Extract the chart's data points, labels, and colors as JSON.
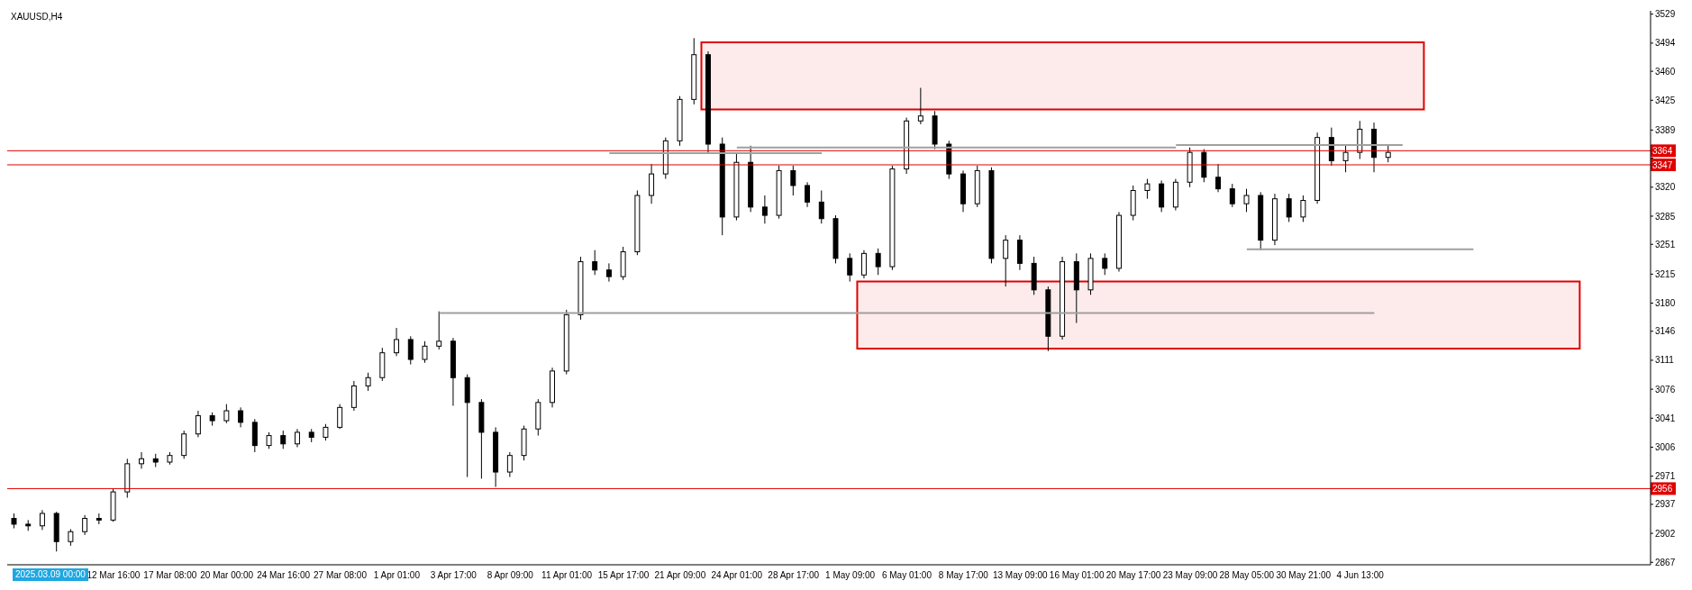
{
  "chart_data": {
    "type": "candlestick",
    "title": "XAUUSD,H4",
    "annotations": [
      "2025.03.09 00:00"
    ],
    "categories": [
      null,
      null,
      null,
      null,
      null,
      null,
      null,
      "12 Mar 16:00",
      null,
      null,
      null,
      "17 Mar 08:00",
      null,
      null,
      null,
      "20 Mar 00:00",
      null,
      null,
      null,
      "24 Mar 16:00",
      null,
      null,
      null,
      "27 Mar 08:00",
      null,
      null,
      null,
      "1 Apr 01:00",
      null,
      null,
      null,
      "3 Apr 17:00",
      null,
      null,
      null,
      "8 Apr 09:00",
      null,
      null,
      null,
      "11 Apr 01:00",
      null,
      null,
      null,
      "15 Apr 17:00",
      null,
      null,
      null,
      "21 Apr 09:00",
      null,
      null,
      null,
      "24 Apr 01:00",
      null,
      null,
      null,
      "28 Apr 17:00",
      null,
      null,
      null,
      "1 May 09:00",
      null,
      null,
      null,
      "6 May 01:00",
      null,
      null,
      null,
      "8 May 17:00",
      null,
      null,
      null,
      "13 May 09:00",
      null,
      null,
      null,
      "16 May 01:00",
      null,
      null,
      null,
      "20 May 17:00",
      null,
      null,
      null,
      "23 May 09:00",
      null,
      null,
      null,
      "28 May 05:00",
      null,
      null,
      null,
      "30 May 21:00",
      null,
      null,
      null,
      "4 Jun 13:00",
      null,
      null,
      null,
      null,
      null,
      null,
      null,
      null,
      null,
      null,
      null,
      null,
      null,
      null,
      null,
      null,
      null,
      null,
      null,
      null
    ],
    "ohlc": [
      [
        2920,
        2926,
        2908,
        2913
      ],
      [
        2913,
        2918,
        2905,
        2911
      ],
      [
        2911,
        2930,
        2906,
        2926
      ],
      [
        2926,
        2928,
        2880,
        2892
      ],
      [
        2892,
        2907,
        2887,
        2904
      ],
      [
        2904,
        2924,
        2900,
        2920
      ],
      [
        2920,
        2926,
        2913,
        2918
      ],
      [
        2918,
        2956,
        2916,
        2952
      ],
      [
        2952,
        2992,
        2945,
        2986
      ],
      [
        2986,
        3000,
        2980,
        2992
      ],
      [
        2992,
        2998,
        2982,
        2988
      ],
      [
        2988,
        3000,
        2985,
        2996
      ],
      [
        2996,
        3026,
        2992,
        3022
      ],
      [
        3022,
        3050,
        3018,
        3044
      ],
      [
        3044,
        3048,
        3032,
        3038
      ],
      [
        3038,
        3058,
        3035,
        3050
      ],
      [
        3050,
        3054,
        3030,
        3036
      ],
      [
        3036,
        3040,
        3000,
        3008
      ],
      [
        3008,
        3024,
        3004,
        3020
      ],
      [
        3020,
        3026,
        3004,
        3010
      ],
      [
        3010,
        3028,
        3006,
        3024
      ],
      [
        3024,
        3028,
        3012,
        3018
      ],
      [
        3018,
        3034,
        3014,
        3030
      ],
      [
        3030,
        3058,
        3028,
        3054
      ],
      [
        3054,
        3086,
        3050,
        3080
      ],
      [
        3080,
        3096,
        3074,
        3090
      ],
      [
        3090,
        3126,
        3086,
        3120
      ],
      [
        3120,
        3150,
        3116,
        3136
      ],
      [
        3136,
        3140,
        3106,
        3112
      ],
      [
        3112,
        3134,
        3108,
        3128
      ],
      [
        3128,
        3170,
        3124,
        3134
      ],
      [
        3134,
        3138,
        3056,
        3090
      ],
      [
        3090,
        3094,
        2970,
        3060
      ],
      [
        3060,
        3064,
        2968,
        3024
      ],
      [
        3024,
        3030,
        2958,
        2976
      ],
      [
        2976,
        3000,
        2970,
        2996
      ],
      [
        2996,
        3032,
        2990,
        3028
      ],
      [
        3028,
        3064,
        3020,
        3060
      ],
      [
        3060,
        3102,
        3054,
        3098
      ],
      [
        3098,
        3172,
        3094,
        3166
      ],
      [
        3166,
        3236,
        3160,
        3230
      ],
      [
        3230,
        3244,
        3214,
        3220
      ],
      [
        3220,
        3228,
        3206,
        3212
      ],
      [
        3212,
        3248,
        3208,
        3242
      ],
      [
        3242,
        3316,
        3238,
        3310
      ],
      [
        3310,
        3348,
        3300,
        3336
      ],
      [
        3336,
        3380,
        3330,
        3376
      ],
      [
        3376,
        3430,
        3370,
        3426
      ],
      [
        3426,
        3500,
        3420,
        3480
      ],
      [
        3480,
        3484,
        3360,
        3372
      ],
      [
        3372,
        3380,
        3262,
        3284
      ],
      [
        3284,
        3362,
        3280,
        3350
      ],
      [
        3350,
        3370,
        3290,
        3296
      ],
      [
        3296,
        3310,
        3276,
        3286
      ],
      [
        3286,
        3346,
        3282,
        3340
      ],
      [
        3340,
        3346,
        3310,
        3322
      ],
      [
        3322,
        3326,
        3296,
        3302
      ],
      [
        3302,
        3316,
        3276,
        3282
      ],
      [
        3282,
        3286,
        3228,
        3234
      ],
      [
        3234,
        3240,
        3206,
        3214
      ],
      [
        3214,
        3244,
        3210,
        3240
      ],
      [
        3240,
        3246,
        3214,
        3224
      ],
      [
        3224,
        3346,
        3220,
        3342
      ],
      [
        3342,
        3404,
        3336,
        3400
      ],
      [
        3400,
        3440,
        3396,
        3406
      ],
      [
        3406,
        3412,
        3366,
        3372
      ],
      [
        3372,
        3376,
        3330,
        3336
      ],
      [
        3336,
        3340,
        3290,
        3300
      ],
      [
        3300,
        3346,
        3296,
        3340
      ],
      [
        3340,
        3344,
        3228,
        3234
      ],
      [
        3234,
        3262,
        3200,
        3256
      ],
      [
        3256,
        3262,
        3220,
        3228
      ],
      [
        3228,
        3236,
        3190,
        3196
      ],
      [
        3196,
        3200,
        3122,
        3140
      ],
      [
        3140,
        3236,
        3136,
        3230
      ],
      [
        3230,
        3240,
        3156,
        3196
      ],
      [
        3196,
        3240,
        3190,
        3234
      ],
      [
        3234,
        3240,
        3214,
        3222
      ],
      [
        3222,
        3290,
        3218,
        3286
      ],
      [
        3286,
        3322,
        3280,
        3316
      ],
      [
        3316,
        3330,
        3306,
        3324
      ],
      [
        3324,
        3328,
        3290,
        3296
      ],
      [
        3296,
        3330,
        3292,
        3326
      ],
      [
        3326,
        3368,
        3320,
        3362
      ],
      [
        3362,
        3366,
        3326,
        3332
      ],
      [
        3332,
        3348,
        3314,
        3318
      ],
      [
        3318,
        3324,
        3296,
        3300
      ],
      [
        3300,
        3318,
        3290,
        3310
      ],
      [
        3310,
        3314,
        3244,
        3256
      ],
      [
        3256,
        3312,
        3250,
        3306
      ],
      [
        3306,
        3312,
        3278,
        3284
      ],
      [
        3284,
        3310,
        3278,
        3304
      ],
      [
        3304,
        3386,
        3300,
        3380
      ],
      [
        3380,
        3392,
        3346,
        3352
      ],
      [
        3352,
        3370,
        3338,
        3362
      ],
      [
        3362,
        3400,
        3354,
        3390
      ],
      [
        3390,
        3398,
        3338,
        3356
      ],
      [
        3356,
        3372,
        3350,
        3362
      ],
      null,
      null,
      null,
      null,
      null,
      null,
      null,
      null,
      null,
      null,
      null,
      null,
      null,
      null,
      null,
      null,
      null,
      null
    ],
    "color": "#000000",
    "ylim": [
      2864,
      3533
    ],
    "yticks": [
      3529,
      3494,
      3460,
      3425,
      3389,
      {
        "value": 3355,
        "label": null
      },
      3320,
      3285,
      3251,
      3215,
      3180,
      3146,
      3111,
      3076,
      3041,
      3006,
      2971,
      2937,
      2902,
      2867
    ],
    "ref_lines": [
      {
        "axis": "y",
        "value": 3364,
        "label": "3364",
        "color": "#e00000"
      },
      {
        "axis": "y",
        "value": 3347,
        "label": "3347",
        "color": "#e00000"
      },
      {
        "axis": "y",
        "value": 2956,
        "label": "2956",
        "color": "#e00000"
      },
      {
        "axis": "y",
        "value": 3168,
        "color": "#a0a0a0"
      },
      {
        "axis": "y",
        "value": 3361,
        "color": "#a0a0a0"
      },
      {
        "axis": "y",
        "value": 3368,
        "color": "#a0a0a0"
      },
      {
        "axis": "y",
        "value": 3371,
        "color": "#a0a0a0"
      },
      {
        "axis": "y",
        "value": 3245,
        "color": "#a0a0a0"
      }
    ],
    "bands": [
      {
        "axis": "y",
        "from": 3414,
        "to": 3495,
        "color": "#e00000"
      },
      {
        "axis": "y",
        "from": 3125,
        "to": 3206,
        "color": "#e00000"
      }
    ]
  }
}
